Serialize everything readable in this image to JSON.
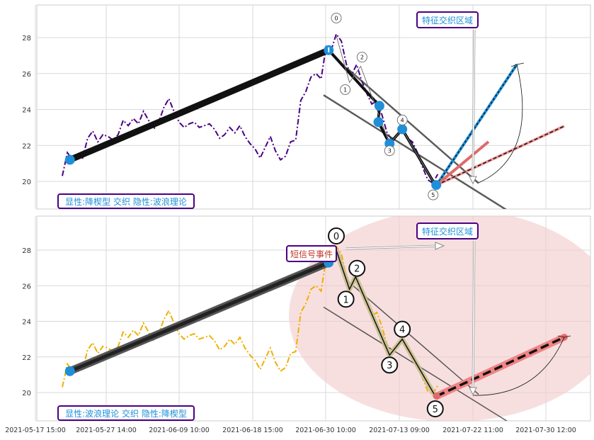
{
  "chart_data": [
    {
      "type": "line",
      "panel": "top",
      "x_ticks": [
        "2021-05-17 15:00",
        "2021-05-27 14:00",
        "2021-06-09 10:00",
        "2021-06-18 15:00",
        "2021-06-30 10:00",
        "2021-07-13 09:00",
        "2021-07-22 11:00",
        "2021-07-30 12:00"
      ],
      "y_ticks": [
        20,
        22,
        24,
        26,
        28
      ],
      "ylim": [
        18.4,
        29.9
      ],
      "grid": true,
      "price_color": "#4b0082",
      "price_style": "dash-dot",
      "price_series": [
        [
          0,
          20.3
        ],
        [
          1,
          21.6
        ],
        [
          2,
          21.2
        ],
        [
          3,
          21.5
        ],
        [
          4,
          21.3
        ],
        [
          5,
          22.4
        ],
        [
          6,
          22.8
        ],
        [
          7,
          22.2
        ],
        [
          8,
          22.6
        ],
        [
          9,
          22.5
        ],
        [
          10,
          22.3
        ],
        [
          11,
          22.6
        ],
        [
          12,
          23.4
        ],
        [
          13,
          23.1
        ],
        [
          14,
          23.5
        ],
        [
          15,
          23.2
        ],
        [
          16,
          23.9
        ],
        [
          17,
          23.4
        ],
        [
          18,
          22.9
        ],
        [
          19,
          23.3
        ],
        [
          20,
          24.1
        ],
        [
          21,
          24.6
        ],
        [
          22,
          23.9
        ],
        [
          23,
          23.3
        ],
        [
          24,
          23.0
        ],
        [
          25,
          23.2
        ],
        [
          26,
          23.3
        ],
        [
          27,
          23.0
        ],
        [
          28,
          23.1
        ],
        [
          29,
          23.2
        ],
        [
          30,
          22.9
        ],
        [
          31,
          22.4
        ],
        [
          32,
          22.6
        ],
        [
          33,
          23.0
        ],
        [
          34,
          22.7
        ],
        [
          35,
          23.1
        ],
        [
          36,
          22.5
        ],
        [
          37,
          22.1
        ],
        [
          38,
          21.8
        ],
        [
          39,
          21.3
        ],
        [
          40,
          21.9
        ],
        [
          41,
          22.5
        ],
        [
          42,
          21.7
        ],
        [
          43,
          21.2
        ],
        [
          44,
          21.4
        ],
        [
          45,
          22.2
        ],
        [
          46,
          22.3
        ],
        [
          47,
          24.5
        ],
        [
          48,
          25.0
        ],
        [
          49,
          25.8
        ],
        [
          50,
          26.0
        ],
        [
          51,
          25.7
        ],
        [
          52,
          27.5
        ],
        [
          53,
          27.3
        ],
        [
          54,
          28.2
        ],
        [
          55,
          27.8
        ],
        [
          56,
          26.5
        ],
        [
          57,
          25.9
        ],
        [
          58,
          26.5
        ],
        [
          59,
          25.6
        ],
        [
          60,
          24.9
        ],
        [
          61,
          24.3
        ],
        [
          62,
          24.5
        ],
        [
          63,
          23.7
        ],
        [
          64,
          22.7
        ],
        [
          65,
          22.3
        ],
        [
          66,
          22.6
        ],
        [
          67,
          22.9
        ],
        [
          68,
          22.4
        ],
        [
          69,
          22.2
        ],
        [
          70,
          21.6
        ],
        [
          71,
          20.8
        ],
        [
          72,
          20.1
        ],
        [
          73,
          19.9
        ],
        [
          74,
          20.4
        ]
      ],
      "wave_points": [
        {
          "label": "0",
          "i": 54,
          "y": 28.1
        },
        {
          "label": "1",
          "i": 56.6,
          "y": 25.5
        },
        {
          "label": "2",
          "i": 58.8,
          "y": 26.4
        },
        {
          "label": "3",
          "i": 64.5,
          "y": 22.1
        },
        {
          "label": "4",
          "i": 67,
          "y": 22.9
        },
        {
          "label": "5",
          "i": 73.5,
          "y": 19.8
        }
      ],
      "blue_markers": [
        {
          "i": 1.5,
          "y": 21.2
        },
        {
          "i": 52.5,
          "y": 27.3
        },
        {
          "i": 62.5,
          "y": 24.2
        },
        {
          "i": 62.3,
          "y": 23.3
        },
        {
          "i": 64.5,
          "y": 22.1
        },
        {
          "i": 67,
          "y": 22.9
        },
        {
          "i": 73.7,
          "y": 19.8
        }
      ],
      "annotation": "特征交织区域",
      "bottom_label": "显性:降楔型 交织 隐性:波浪理论"
    },
    {
      "type": "line",
      "panel": "bottom",
      "x_ticks": [
        "2021-05-17 15:00",
        "2021-05-27 14:00",
        "2021-06-09 10:00",
        "2021-06-18 15:00",
        "2021-06-30 10:00",
        "2021-07-13 09:00",
        "2021-07-22 11:00",
        "2021-07-30 12:00"
      ],
      "y_ticks": [
        20,
        22,
        24,
        26,
        28
      ],
      "ylim": [
        18.4,
        29.9
      ],
      "grid": true,
      "price_color": "#f0b000",
      "price_style": "dash-dot",
      "wave_points": [
        {
          "label": "0",
          "i": 54,
          "y": 28.0
        },
        {
          "label": "1",
          "i": 56.6,
          "y": 25.8
        },
        {
          "label": "2",
          "i": 57.8,
          "y": 26.5
        },
        {
          "label": "3",
          "i": 64.5,
          "y": 22.1
        },
        {
          "label": "4",
          "i": 67,
          "y": 23.0
        },
        {
          "label": "5",
          "i": 73.5,
          "y": 19.8
        }
      ],
      "annotation": "特征交织区域",
      "signal_label": "短信号事件",
      "bottom_label": "显性:波浪理论 交织 隐性:降楔型"
    }
  ]
}
